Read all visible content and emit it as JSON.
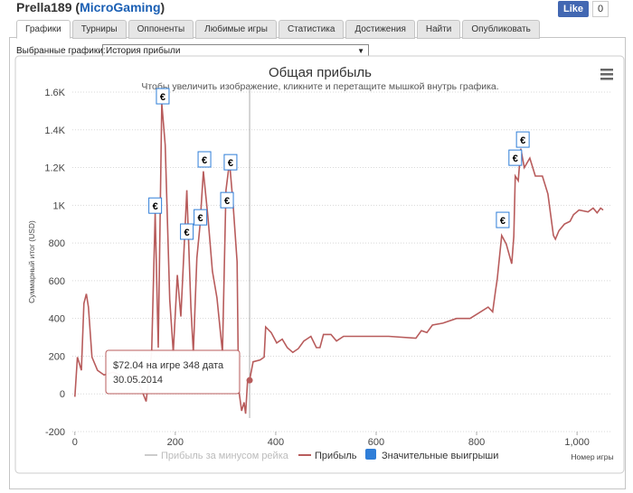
{
  "header": {
    "title_prefix": "Prella189 (",
    "network": "MicroGaming",
    "title_suffix": ")",
    "like": "Like",
    "like_count": "0"
  },
  "tabs": [
    "Графики",
    "Турниры",
    "Оппоненты",
    "Любимые игры",
    "Статистика",
    "Достижения",
    "Найти",
    "Опубликовать"
  ],
  "selector": {
    "label": "Выбранные графики:",
    "value": "История прибыли"
  },
  "chart_data": {
    "type": "line",
    "title": "Общая прибыль",
    "subtitle": "Чтобы увеличить изображение, кликните и перетащите мышкой внутрь графика.",
    "y_label": "Суммарный итог (USD)",
    "x_label": "Номер игры",
    "grid": true,
    "xlim": [
      -5,
      1070
    ],
    "ylim": [
      -200,
      1600
    ],
    "xticks": [
      0,
      200,
      400,
      600,
      800,
      {
        "value": 1000,
        "label": "1,000"
      }
    ],
    "yticks": [
      -200,
      0,
      200,
      400,
      600,
      800,
      {
        "value": 1000,
        "label": "1K"
      },
      {
        "value": 1200,
        "label": "1.2K"
      },
      {
        "value": 1400,
        "label": "1.4K"
      },
      {
        "value": 1600,
        "label": "1.6K"
      }
    ],
    "series": [
      {
        "name": "Прибыль за минусом рейка",
        "color": "#cccccc"
      },
      {
        "name": "Прибыль",
        "color": "#b85c5c",
        "x": [
          0,
          5,
          13,
          18,
          23,
          27,
          34,
          45,
          58,
          76,
          103,
          121,
          142,
          153,
          160,
          166,
          173,
          180,
          189,
          196,
          204,
          211,
          220,
          223,
          231,
          236,
          243,
          249,
          256,
          265,
          274,
          283,
          294,
          301,
          308,
          315,
          323,
          326,
          332,
          337,
          340,
          344,
          348,
          355,
          369,
          377,
          380,
          391,
          402,
          413,
          423,
          434,
          445,
          456,
          470,
          481,
          488,
          495,
          510,
          521,
          535,
          571,
          625,
          679,
          690,
          701,
          712,
          733,
          760,
          787,
          805,
          823,
          832,
          838,
          841,
          850,
          859,
          870,
          874,
          877,
          883,
          888,
          895,
          906,
          917,
          931,
          942,
          953,
          957,
          964,
          975,
          986,
          993,
          1004,
          1022,
          1032,
          1040,
          1047,
          1052
        ],
        "values": [
          -15,
          195,
          125,
          480,
          530,
          460,
          195,
          125,
          100,
          115,
          85,
          100,
          -40,
          220,
          960,
          245,
          1540,
          1320,
          500,
          220,
          630,
          410,
          915,
          1080,
          460,
          220,
          720,
          890,
          1180,
          940,
          650,
          510,
          220,
          1080,
          1230,
          1010,
          700,
          30,
          -90,
          -45,
          -105,
          70,
          72.04,
          170,
          180,
          195,
          355,
          325,
          270,
          290,
          245,
          220,
          240,
          280,
          305,
          245,
          245,
          315,
          315,
          280,
          305,
          305,
          305,
          295,
          335,
          325,
          365,
          375,
          400,
          400,
          430,
          460,
          435,
          555,
          605,
          840,
          795,
          690,
          835,
          1155,
          1130,
          1300,
          1200,
          1250,
          1155,
          1155,
          1060,
          840,
          820,
          865,
          900,
          915,
          950,
          975,
          965,
          985,
          960,
          985,
          975
        ]
      },
      {
        "name": "Значительные выигрыши",
        "color": "#2f7ed8",
        "marker_label": "€",
        "x": [
          160,
          175,
          223,
          250,
          258,
          303,
          310,
          852,
          877,
          892
        ],
        "values": [
          948,
          1528,
          810,
          886,
          1193,
          977,
          1178,
          872,
          1202,
          1298
        ]
      }
    ],
    "tooltip": {
      "x": 348,
      "y": 72.04,
      "lines": [
        "$72.04 на игре 348 дата",
        "30.05.2014"
      ]
    }
  }
}
